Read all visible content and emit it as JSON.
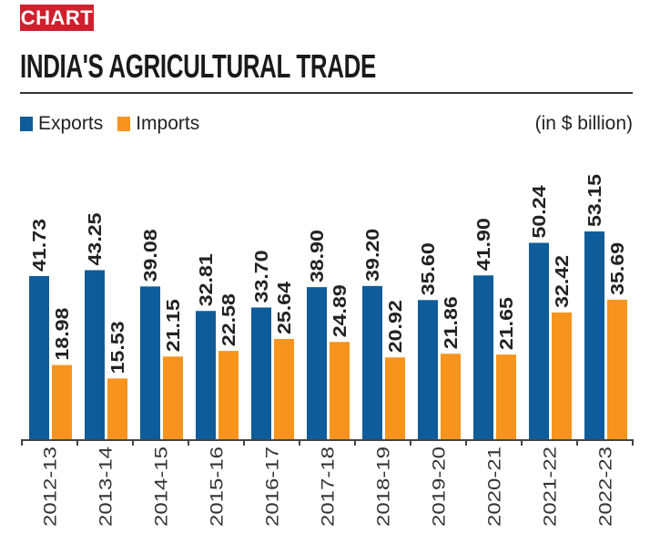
{
  "header": {
    "tag": "CHART",
    "unit": "(in $ billion)"
  },
  "colors": {
    "exports": "#0f5c9a",
    "imports": "#f7941d",
    "tag": "#d0202e"
  },
  "chart_data": {
    "type": "bar",
    "title": "INDIA'S AGRICULTURAL TRADE",
    "xlabel": "",
    "ylabel": "(in $ billion)",
    "legend_position": "top-left",
    "grid": false,
    "ylim": [
      0,
      56
    ],
    "categories": [
      "2012-13",
      "2013-14",
      "2014-15",
      "2015-16",
      "2016-17",
      "2017-18",
      "2018-19",
      "2019-20",
      "2020-21",
      "2021-22",
      "2022-23"
    ],
    "series": [
      {
        "name": "Exports",
        "values": [
          41.73,
          43.25,
          39.08,
          32.81,
          33.7,
          38.9,
          39.2,
          35.6,
          41.9,
          50.24,
          53.15
        ],
        "labels": [
          "41.73",
          "43.25",
          "39.08",
          "32.81",
          "33.70",
          "38.90",
          "39.20",
          "35.60",
          "41.90",
          "50.24",
          "53.15"
        ]
      },
      {
        "name": "Imports",
        "values": [
          18.98,
          15.53,
          21.15,
          22.58,
          25.64,
          24.89,
          20.92,
          21.86,
          21.65,
          32.42,
          35.69
        ],
        "labels": [
          "18.98",
          "15.53",
          "21.15",
          "22.58",
          "25.64",
          "24.89",
          "20.92",
          "21.86",
          "21.65",
          "32.42",
          "35.69"
        ]
      }
    ]
  }
}
